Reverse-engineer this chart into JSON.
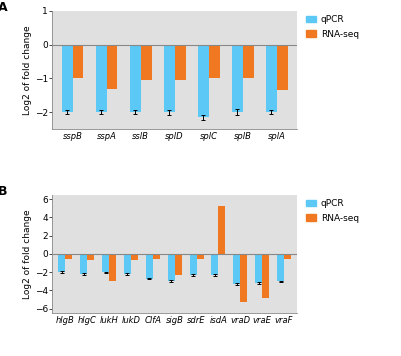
{
  "panel_a": {
    "categories": [
      "sspB",
      "sspA",
      "sslB",
      "splD",
      "splC",
      "splB",
      "splA"
    ],
    "qpcr": [
      -2.0,
      -2.0,
      -2.0,
      -2.0,
      -2.15,
      -2.0,
      -2.0
    ],
    "rnaseq": [
      -1.0,
      -1.3,
      -1.05,
      -1.05,
      -1.0,
      -1.0,
      -1.35
    ],
    "qpcr_err": [
      0.06,
      0.06,
      0.06,
      0.07,
      0.08,
      0.09,
      0.06
    ],
    "ylim": [
      -2.5,
      1.0
    ],
    "yticks": [
      -2,
      -1,
      0,
      1
    ],
    "ylabel": "Log2 of fold change",
    "label": "A"
  },
  "panel_b": {
    "categories": [
      "hlgB",
      "hlgC",
      "lukH",
      "lukD",
      "ClfA",
      "sigB",
      "sdrE",
      "isdA",
      "vraD",
      "vraE",
      "vraF"
    ],
    "qpcr": [
      -2.0,
      -2.2,
      -2.0,
      -2.2,
      -2.7,
      -3.0,
      -2.3,
      -2.3,
      -3.3,
      -3.2,
      -3.0
    ],
    "rnaseq": [
      -0.5,
      -0.7,
      -3.0,
      -0.7,
      -0.5,
      -2.3,
      -0.5,
      5.3,
      -5.3,
      -4.8,
      -0.6
    ],
    "qpcr_err": [
      0.08,
      0.09,
      0.07,
      0.09,
      0.09,
      0.12,
      0.09,
      0.12,
      0.12,
      0.12,
      0.06
    ],
    "ylim": [
      -6.5,
      6.5
    ],
    "yticks": [
      -6,
      -4,
      -2,
      0,
      2,
      4,
      6
    ],
    "ylabel": "Log2 of fold change",
    "label": "B"
  },
  "qpcr_color": "#5BC8F5",
  "rnaseq_color": "#F07820",
  "bg_color": "#E0E0E0",
  "bar_width": 0.32,
  "legend_labels": [
    "qPCR",
    "RNA-seq"
  ],
  "font_size": 6.5,
  "label_font_size": 9
}
